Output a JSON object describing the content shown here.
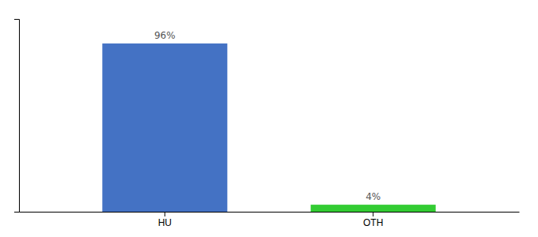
{
  "chart_data": {
    "type": "bar",
    "categories": [
      "HU",
      "OTH"
    ],
    "values": [
      96,
      4
    ],
    "value_labels": [
      "96%",
      "4%"
    ],
    "colors": [
      "#4472c4",
      "#33cc33"
    ],
    "ylim": [
      0,
      110
    ],
    "yticks": [],
    "data_labels": true,
    "tick_labels": "x",
    "grid": false
  }
}
